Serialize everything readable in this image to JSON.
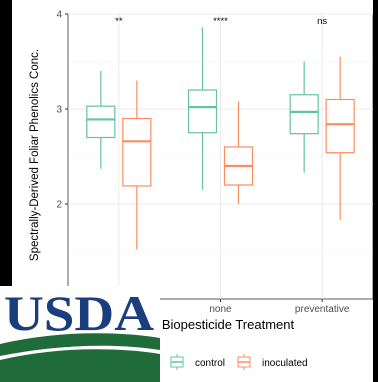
{
  "colors": {
    "control": "#66c2a5",
    "inoculated": "#fc8d62",
    "grid": "#ebebeb",
    "axis": "#333333",
    "usda_blue": "#1a3d7c",
    "usda_green": "#1f6b3a"
  },
  "logo": {
    "text": "USDA"
  },
  "chart_data": {
    "type": "boxplot",
    "ylabel": "Spectrally-Derived Foliar Phenolics Conc.",
    "xlabel": "Biopesticide Treatment",
    "ylim": [
      1.0,
      4.0
    ],
    "yticks": [
      2,
      3,
      4
    ],
    "categories": [
      "",
      "none",
      "preventative"
    ],
    "significance": [
      "**",
      "****",
      "ns"
    ],
    "legend": {
      "position": "bottom",
      "entries": [
        "control",
        "inoculated"
      ]
    },
    "series": [
      {
        "name": "control",
        "boxes": [
          {
            "min": 2.37,
            "q1": 2.7,
            "median": 2.89,
            "q3": 3.03,
            "max": 3.4
          },
          {
            "min": 2.15,
            "q1": 2.75,
            "median": 3.02,
            "q3": 3.2,
            "max": 3.86
          },
          {
            "min": 2.33,
            "q1": 2.74,
            "median": 2.97,
            "q3": 3.15,
            "max": 3.5
          }
        ]
      },
      {
        "name": "inoculated",
        "boxes": [
          {
            "min": 1.52,
            "q1": 2.19,
            "median": 2.66,
            "q3": 2.9,
            "max": 3.3
          },
          {
            "min": 2.0,
            "q1": 2.2,
            "median": 2.4,
            "q3": 2.6,
            "max": 3.08
          },
          {
            "min": 1.83,
            "q1": 2.54,
            "median": 2.84,
            "q3": 3.1,
            "max": 3.55
          }
        ]
      }
    ]
  }
}
